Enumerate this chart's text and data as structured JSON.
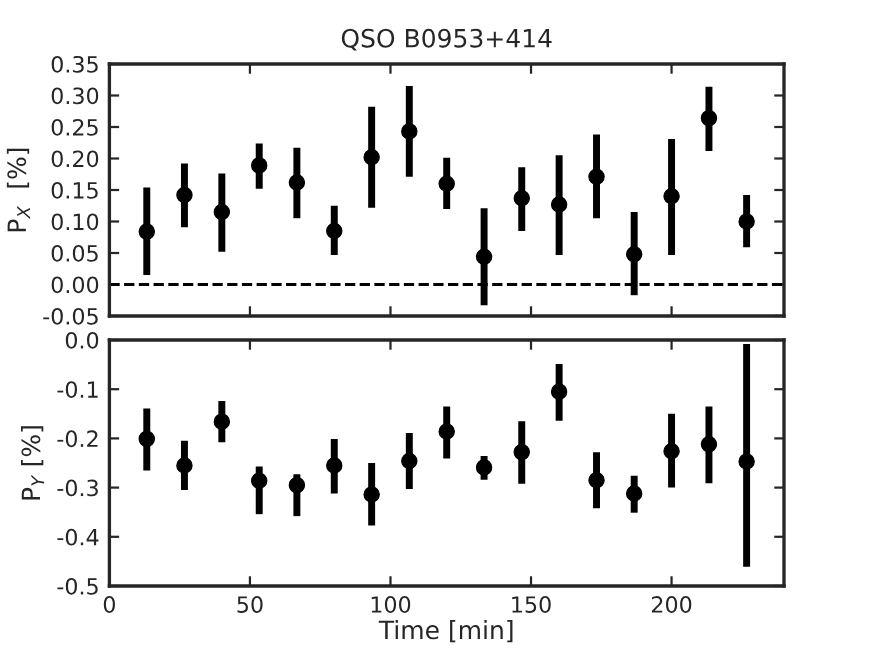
{
  "chart_data": [
    {
      "type": "scatter",
      "title": "QSO B0953+414",
      "ylabel": "P$_{X}$  [%]",
      "marker": "circle",
      "color": "#000000",
      "tick_labels": "y",
      "grid": false,
      "legend": false,
      "x": [
        13.3,
        26.7,
        40,
        53.3,
        66.7,
        80,
        93.3,
        106.7,
        120,
        133.3,
        146.7,
        160,
        173.3,
        186.7,
        200,
        213.3,
        226.7
      ],
      "values": [
        0.084,
        0.142,
        0.115,
        0.189,
        0.162,
        0.085,
        0.202,
        0.243,
        0.16,
        0.044,
        0.137,
        0.127,
        0.171,
        0.048,
        0.14,
        0.264,
        0.1
      ],
      "errors": [
        [
          0.015,
          0.154
        ],
        [
          0.091,
          0.192
        ],
        [
          0.052,
          0.176
        ],
        [
          0.152,
          0.224
        ],
        [
          0.105,
          0.217
        ],
        [
          0.047,
          0.125
        ],
        [
          0.122,
          0.282
        ],
        [
          0.171,
          0.315
        ],
        [
          0.12,
          0.201
        ],
        [
          -0.033,
          0.121
        ],
        [
          0.085,
          0.186
        ],
        [
          0.047,
          0.205
        ],
        [
          0.105,
          0.238
        ],
        [
          -0.017,
          0.115
        ],
        [
          0.047,
          0.231
        ],
        [
          0.212,
          0.314
        ],
        [
          0.059,
          0.142
        ]
      ],
      "xlim": [
        0,
        240
      ],
      "xticks": [
        {
          "value": 0,
          "label": null
        },
        {
          "value": 50,
          "label": null
        },
        {
          "value": 100,
          "label": null
        },
        {
          "value": 150,
          "label": null
        },
        {
          "value": 200,
          "label": null
        }
      ],
      "ylim": [
        -0.05,
        0.35
      ],
      "yticks": [
        {
          "value": -0.05,
          "label": "-0.05"
        },
        {
          "value": 0,
          "label": "0.00"
        },
        {
          "value": 0.05,
          "label": "0.05"
        },
        {
          "value": 0.1,
          "label": "0.10"
        },
        {
          "value": 0.15,
          "label": "0.15"
        },
        {
          "value": 0.2,
          "label": "0.20"
        },
        {
          "value": 0.25,
          "label": "0.25"
        },
        {
          "value": 0.3,
          "label": "0.30"
        },
        {
          "value": 0.35,
          "label": "0.35"
        }
      ],
      "ref_lines": [
        {
          "axis": "y",
          "value": 0,
          "color": "#000000",
          "line_style": "dashed"
        }
      ]
    },
    {
      "type": "scatter",
      "xlabel": "Time [min]",
      "ylabel": "P$_{Y}$ [%]",
      "marker": "circle",
      "color": "#000000",
      "grid": false,
      "legend": false,
      "x": [
        13.3,
        26.7,
        40,
        53.3,
        66.7,
        80,
        93.3,
        106.7,
        120,
        133.3,
        146.7,
        160,
        173.3,
        186.7,
        200,
        213.3,
        226.7
      ],
      "values": [
        -0.201,
        -0.255,
        -0.166,
        -0.286,
        -0.295,
        -0.255,
        -0.314,
        -0.246,
        -0.186,
        -0.259,
        -0.228,
        -0.105,
        -0.285,
        -0.312,
        -0.226,
        -0.212,
        -0.247
      ],
      "errors": [
        [
          -0.265,
          -0.139
        ],
        [
          -0.305,
          -0.205
        ],
        [
          -0.208,
          -0.124
        ],
        [
          -0.354,
          -0.257
        ],
        [
          -0.358,
          -0.273
        ],
        [
          -0.312,
          -0.201
        ],
        [
          -0.377,
          -0.25
        ],
        [
          -0.303,
          -0.189
        ],
        [
          -0.241,
          -0.135
        ],
        [
          -0.284,
          -0.236
        ],
        [
          -0.292,
          -0.165
        ],
        [
          -0.164,
          -0.049
        ],
        [
          -0.342,
          -0.228
        ],
        [
          -0.351,
          -0.276
        ],
        [
          -0.3,
          -0.15
        ],
        [
          -0.291,
          -0.135
        ],
        [
          -0.461,
          -0.008
        ]
      ],
      "xlim": [
        0,
        240
      ],
      "xticks": [
        0,
        50,
        100,
        150,
        200
      ],
      "ylim": [
        -0.5,
        0
      ],
      "yticks": [
        {
          "value": -0.5,
          "label": "-0.5"
        },
        {
          "value": -0.4,
          "label": "-0.4"
        },
        {
          "value": -0.3,
          "label": "-0.3"
        },
        {
          "value": -0.2,
          "label": "-0.2"
        },
        {
          "value": -0.1,
          "label": "-0.1"
        },
        {
          "value": 0,
          "label": "0.0"
        }
      ]
    }
  ]
}
